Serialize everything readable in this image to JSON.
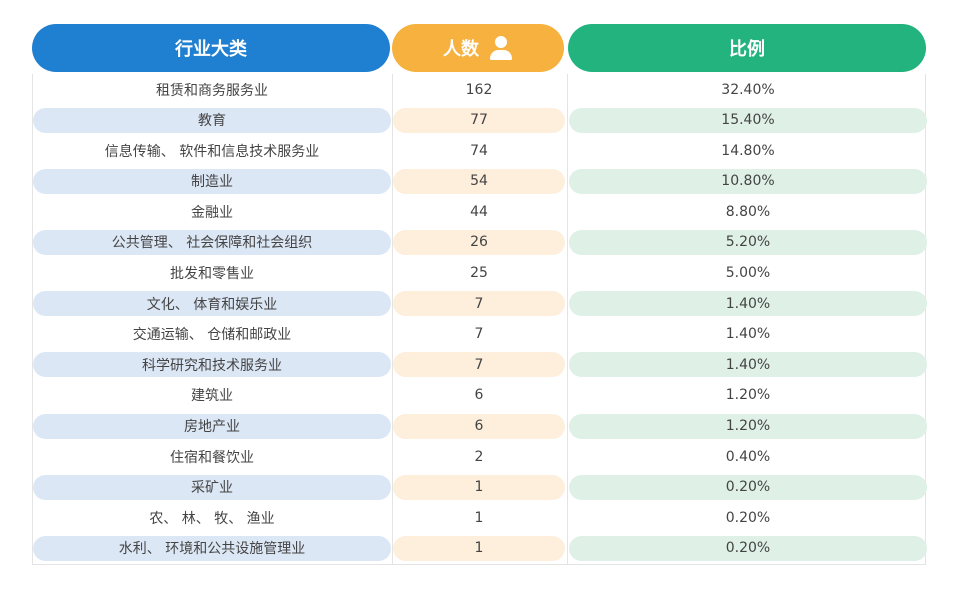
{
  "headers": {
    "industry": "行业大类",
    "count": "人数",
    "ratio": "比例"
  },
  "rows": [
    {
      "industry": "租赁和商务服务业",
      "count": "162",
      "ratio": "32.40%"
    },
    {
      "industry": "教育",
      "count": "77",
      "ratio": "15.40%"
    },
    {
      "industry": "信息传输、 软件和信息技术服务业",
      "count": "74",
      "ratio": "14.80%"
    },
    {
      "industry": "制造业",
      "count": "54",
      "ratio": "10.80%"
    },
    {
      "industry": "金融业",
      "count": "44",
      "ratio": "8.80%"
    },
    {
      "industry": "公共管理、 社会保障和社会组织",
      "count": "26",
      "ratio": "5.20%"
    },
    {
      "industry": "批发和零售业",
      "count": "25",
      "ratio": "5.00%"
    },
    {
      "industry": "文化、 体育和娱乐业",
      "count": "7",
      "ratio": "1.40%"
    },
    {
      "industry": "交通运输、 仓储和邮政业",
      "count": "7",
      "ratio": "1.40%"
    },
    {
      "industry": "科学研究和技术服务业",
      "count": "7",
      "ratio": "1.40%"
    },
    {
      "industry": "建筑业",
      "count": "6",
      "ratio": "1.20%"
    },
    {
      "industry": "房地产业",
      "count": "6",
      "ratio": "1.20%"
    },
    {
      "industry": "住宿和餐饮业",
      "count": "2",
      "ratio": "0.40%"
    },
    {
      "industry": "采矿业",
      "count": "1",
      "ratio": "0.20%"
    },
    {
      "industry": "农、 林、 牧、 渔业",
      "count": "1",
      "ratio": "0.20%"
    },
    {
      "industry": "水利、 环境和公共设施管理业",
      "count": "1",
      "ratio": "0.20%"
    }
  ],
  "icons": {
    "count_header": "person-icon"
  },
  "colors": {
    "industry_header": "#1f7fd0",
    "count_header": "#f6b13f",
    "ratio_header": "#22b37f",
    "industry_stripe": "#dce7f5",
    "count_stripe": "#fdefdc",
    "ratio_stripe": "#dff0e7"
  }
}
